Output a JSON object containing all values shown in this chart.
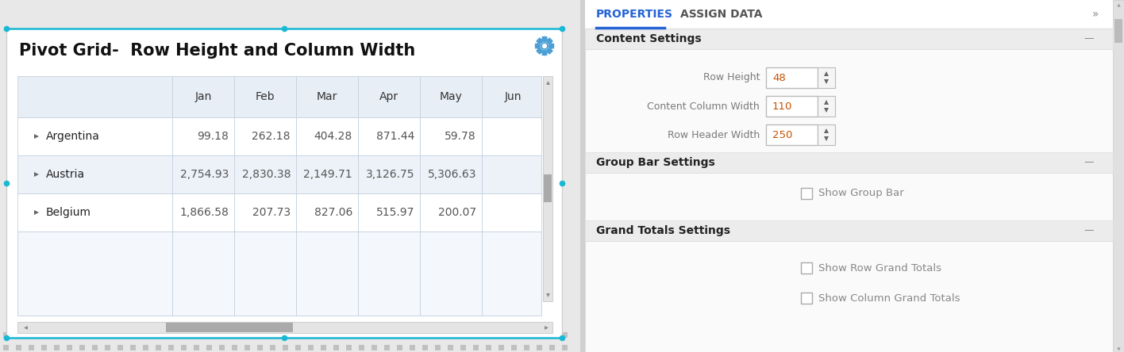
{
  "title": "Pivot Grid-  Row Height and Column Width",
  "bg_color": "#e8e8e8",
  "columns": [
    "",
    "Jan",
    "Feb",
    "Mar",
    "Apr",
    "May",
    "Jun"
  ],
  "rows": [
    {
      "name": "Argentina",
      "values": [
        "99.18",
        "262.18",
        "404.28",
        "871.44",
        "59.78",
        ""
      ]
    },
    {
      "name": "Austria",
      "values": [
        "2,754.93",
        "2,830.38",
        "2,149.71",
        "3,126.75",
        "5,306.63",
        ""
      ]
    },
    {
      "name": "Belgium",
      "values": [
        "1,866.58",
        "207.73",
        "827.06",
        "515.97",
        "200.07",
        ""
      ]
    }
  ],
  "properties_tab": "PROPERTIES",
  "assign_tab": "ASSIGN DATA",
  "tab_active_color": "#2563d4",
  "section_headers": [
    "Content Settings",
    "Group Bar Settings",
    "Grand Totals Settings"
  ],
  "fields": [
    {
      "label": "Row Height",
      "value": "48"
    },
    {
      "label": "Content Column Width",
      "value": "110"
    },
    {
      "label": "Row Header Width",
      "value": "250"
    }
  ],
  "checkboxes": [
    {
      "label": "Show Group Bar"
    },
    {
      "label": "Show Row Grand Totals"
    },
    {
      "label": "Show Column Grand Totals"
    }
  ],
  "cyan_color": "#1ab8d4",
  "gear_color": "#4a9fd4",
  "dot_color": "#c0c0c0",
  "table_header_bg": "#e8eef5",
  "table_alt_row": "#f0f4f9",
  "table_border": "#c8d4e0",
  "spinbox_label_color": "#7a7a7a",
  "spinbox_value_color": "#c85000",
  "section_bg": "#ececec",
  "right_panel_bg": "#fafafa"
}
